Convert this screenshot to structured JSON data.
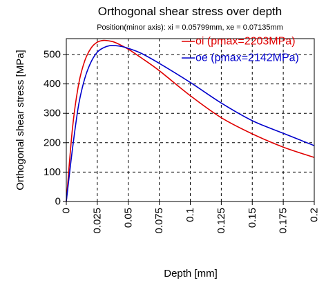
{
  "chart_data": {
    "type": "line",
    "title": "Orthogonal shear stress over depth",
    "subtitle": "Position(minor axis): xi = 0.05799mm, xe = 0.07135mm",
    "xlabel": "Depth [mm]",
    "ylabel": "Orthogonal shear stress [MPa]",
    "xlim": [
      0,
      0.2
    ],
    "ylim": [
      0,
      550
    ],
    "xticks": [
      "0",
      "0.025",
      "0.05",
      "0.075",
      "0.1",
      "0.125",
      "0.15",
      "0.175",
      "0.2"
    ],
    "yticks": [
      "0",
      "100",
      "200",
      "300",
      "400",
      "500"
    ],
    "legend_position": "top-right",
    "grid": true,
    "series": [
      {
        "name": "oi (pmax=2203MPa)",
        "color": "#e00000",
        "x": [
          0,
          0.005,
          0.01,
          0.015,
          0.02,
          0.025,
          0.03,
          0.035,
          0.04,
          0.05,
          0.06,
          0.075,
          0.1,
          0.125,
          0.15,
          0.175,
          0.2
        ],
        "y": [
          0,
          250,
          400,
          480,
          522,
          542,
          548,
          546,
          540,
          518,
          490,
          445,
          360,
          285,
          230,
          185,
          150
        ]
      },
      {
        "name": "oe (pmax=2142MPa)",
        "color": "#0000cc",
        "x": [
          0,
          0.005,
          0.01,
          0.015,
          0.02,
          0.025,
          0.03,
          0.035,
          0.04,
          0.045,
          0.05,
          0.06,
          0.075,
          0.1,
          0.125,
          0.15,
          0.175,
          0.2
        ],
        "y": [
          0,
          180,
          330,
          420,
          475,
          508,
          523,
          530,
          530,
          527,
          521,
          505,
          470,
          405,
          335,
          275,
          232,
          190
        ]
      }
    ]
  }
}
